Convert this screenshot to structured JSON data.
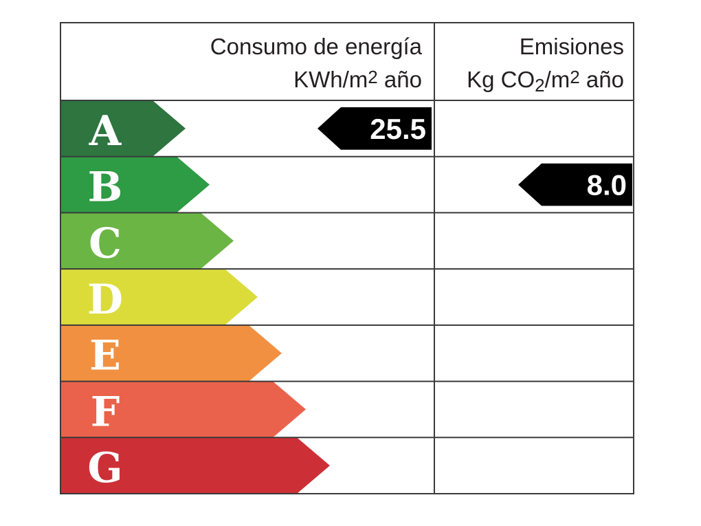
{
  "header": {
    "energy_title": "Consumo de energía",
    "energy_unit_prefix": "KWh/m",
    "energy_unit_exp": "2",
    "energy_unit_suffix": " año",
    "emissions_title": "Emisiones",
    "emissions_unit_a": "Kg CO",
    "emissions_unit_sub": "2",
    "emissions_unit_b": "/m",
    "emissions_unit_exp": "2",
    "emissions_unit_suffix": " año"
  },
  "ratings": [
    {
      "letter": "A",
      "color": "#2e7540"
    },
    {
      "letter": "B",
      "color": "#2e9b45"
    },
    {
      "letter": "C",
      "color": "#6bb544"
    },
    {
      "letter": "D",
      "color": "#dbdc3a"
    },
    {
      "letter": "E",
      "color": "#f29041"
    },
    {
      "letter": "F",
      "color": "#ea624b"
    },
    {
      "letter": "G",
      "color": "#cc3036"
    }
  ],
  "energy": {
    "value": "25.5",
    "rating_index": 0
  },
  "emissions": {
    "value": "8.0",
    "rating_index": 1
  }
}
